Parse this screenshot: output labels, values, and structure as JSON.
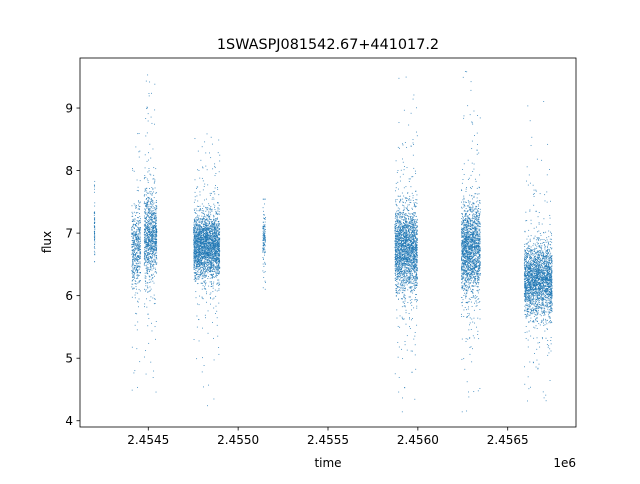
{
  "chart_data": {
    "type": "scatter",
    "title": "1SWASPJ081542.67+441017.2",
    "xlabel": "time",
    "ylabel": "flux",
    "x_offset_label": "1e6",
    "x_scale_factor": 1000000,
    "xlim": [
      2454120,
      2456880
    ],
    "ylim": [
      3.9,
      9.8
    ],
    "xticks": [
      2454500,
      2455000,
      2455500,
      2456000,
      2456500
    ],
    "xtick_labels": [
      "2.4545",
      "2.4550",
      "2.4555",
      "2.4560",
      "2.4565"
    ],
    "yticks": [
      4,
      5,
      6,
      7,
      8,
      9
    ],
    "ytick_labels": [
      "4",
      "5",
      "6",
      "7",
      "8",
      "9"
    ],
    "grid": false,
    "legend": "none",
    "marker_color": "#1f77b4",
    "marker": "small dots",
    "series": [
      {
        "clusters": [
          {
            "x_range": [
              2454197,
              2454200
            ],
            "y_center": 7.05,
            "y_core_spread": 0.35,
            "y_extreme": [
              6.55,
              7.9
            ],
            "density": 0.12
          },
          {
            "x_range": [
              2454405,
              2454455
            ],
            "y_center": 6.75,
            "y_core_spread": 0.55,
            "y_extreme": [
              4.3,
              8.6
            ],
            "density": 0.55
          },
          {
            "x_range": [
              2454475,
              2454545
            ],
            "y_center": 6.95,
            "y_core_spread": 0.6,
            "y_extreme": [
              4.4,
              9.6
            ],
            "density": 0.8
          },
          {
            "x_range": [
              2454750,
              2454895
            ],
            "y_center": 6.8,
            "y_core_spread": 0.45,
            "y_extreme": [
              4.15,
              9.25
            ],
            "density": 1.0
          },
          {
            "x_range": [
              2455135,
              2455150
            ],
            "y_center": 6.9,
            "y_core_spread": 0.3,
            "y_extreme": [
              6.0,
              7.55
            ],
            "density": 0.3
          },
          {
            "x_range": [
              2455870,
              2455995
            ],
            "y_center": 6.75,
            "y_core_spread": 0.6,
            "y_extreme": [
              4.15,
              9.55
            ],
            "density": 1.0
          },
          {
            "x_range": [
              2456240,
              2456345
            ],
            "y_center": 6.75,
            "y_core_spread": 0.65,
            "y_extreme": [
              4.15,
              9.6
            ],
            "density": 1.0
          },
          {
            "x_range": [
              2456590,
              2456745
            ],
            "y_center": 6.25,
            "y_core_spread": 0.5,
            "y_extreme": [
              4.2,
              9.5
            ],
            "density": 0.85
          }
        ]
      }
    ]
  }
}
